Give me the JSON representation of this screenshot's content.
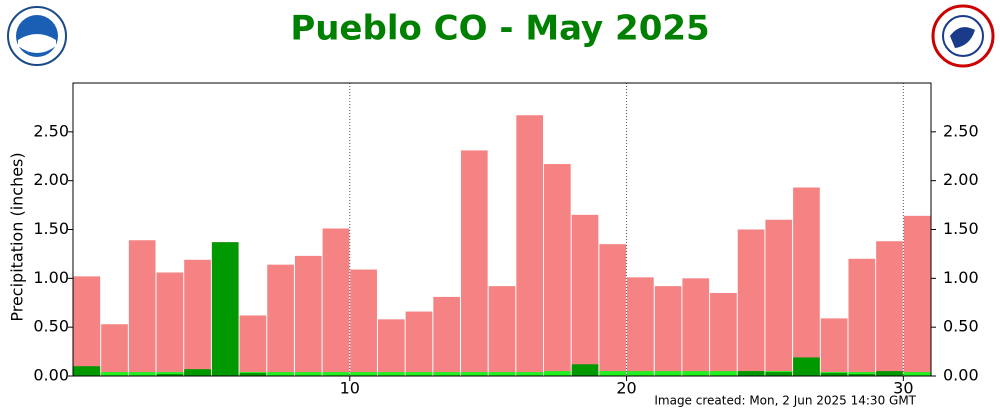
{
  "chart_data": {
    "type": "bar",
    "title": "Pueblo CO - May 2025",
    "y_label": "Precipitation (inches)",
    "footer": "Image created: Mon, 2 Jun 2025 14:30 GMT",
    "x": [
      1,
      2,
      3,
      4,
      5,
      6,
      7,
      8,
      9,
      10,
      11,
      12,
      13,
      14,
      15,
      16,
      17,
      18,
      19,
      20,
      21,
      22,
      23,
      24,
      25,
      26,
      27,
      28,
      29,
      30,
      31
    ],
    "xlim": [
      0,
      31
    ],
    "xticks": [
      10,
      20,
      30
    ],
    "ylim": [
      0,
      3
    ],
    "yticks": [
      {
        "value": 0,
        "label": "0.00"
      },
      {
        "value": 0.5,
        "label": "0.50"
      },
      {
        "value": 1,
        "label": "1.00"
      },
      {
        "value": 1.5,
        "label": "1.50"
      },
      {
        "value": 2,
        "label": "2.00"
      },
      {
        "value": 2.5,
        "label": "2.50"
      }
    ],
    "grid": true,
    "series": [
      {
        "color": "#f58383",
        "values": [
          1.02,
          0.53,
          1.39,
          1.06,
          1.19,
          1.37,
          0.62,
          1.14,
          1.23,
          1.51,
          1.09,
          0.58,
          0.66,
          0.81,
          2.31,
          0.92,
          2.67,
          2.17,
          1.65,
          1.35,
          1.01,
          0.92,
          1.0,
          0.85,
          1.5,
          1.6,
          1.93,
          0.59,
          1.2,
          1.38,
          1.64
        ]
      },
      {
        "color": "#22ee22",
        "values": [
          0.04,
          0.04,
          0.04,
          0.04,
          0.04,
          0.04,
          0.04,
          0.04,
          0.04,
          0.04,
          0.04,
          0.04,
          0.04,
          0.04,
          0.04,
          0.04,
          0.04,
          0.05,
          0.05,
          0.05,
          0.05,
          0.05,
          0.05,
          0.05,
          0.05,
          0.05,
          0.05,
          0.04,
          0.04,
          0.04,
          0.04
        ]
      },
      {
        "color": "#009900",
        "values": [
          0.1,
          0,
          0,
          0.02,
          0.07,
          1.37,
          0.03,
          0,
          0,
          0,
          0,
          0,
          0,
          0,
          0,
          0,
          0,
          0,
          0.12,
          0,
          0,
          0,
          0,
          0,
          0.05,
          0.04,
          0.19,
          0.03,
          0.02,
          0.05,
          0
        ]
      }
    ]
  }
}
